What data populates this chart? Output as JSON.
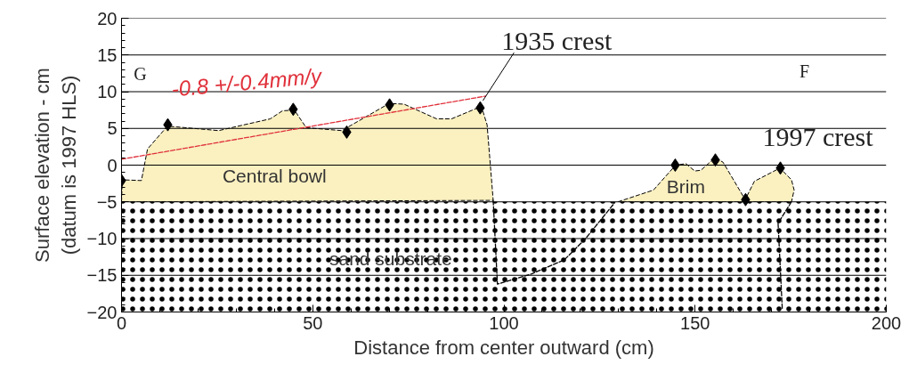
{
  "chart_data": {
    "type": "area",
    "xlabel": "Distance from center outward (cm)",
    "ylabel": "Surface elevation - cm\n(datum is 1997 HLS)",
    "xlim": [
      0,
      200
    ],
    "ylim": [
      -20,
      20
    ],
    "xticks": [
      0,
      50,
      100,
      150,
      200
    ],
    "yticks": [
      -20,
      -15,
      -10,
      -5,
      0,
      5,
      10,
      15,
      20
    ],
    "grid": "y",
    "series": [
      {
        "color": "#faf0c0",
        "line_style": "dashed",
        "x": [
          0,
          0.2,
          5.2,
          6.8,
          12.0,
          14.5,
          25.4,
          38.9,
          42.1,
          45.2,
          48.3,
          57.6,
          70.0,
          73.9,
          82.4,
          86.3,
          94.1,
          95.6,
          97.2
        ],
        "values": [
          -5.0,
          -2.0,
          -2.1,
          2.2,
          5.3,
          5.2,
          4.7,
          6.3,
          7.4,
          7.5,
          5.1,
          4.7,
          8.4,
          8.3,
          6.3,
          6.3,
          8.0,
          5.5,
          -4.8
        ]
      },
      {
        "color": "#faf0c0",
        "line_style": "dashed",
        "x": [
          129.8,
          139.1,
          144.9,
          147.6,
          149.9,
          151.5,
          155.2,
          157.3,
          163.1,
          165.5,
          172.2,
          175.2,
          175.9,
          175.2
        ],
        "values": [
          -5.0,
          -3.4,
          0,
          0.2,
          -0.8,
          -0.7,
          1.0,
          0.4,
          -4.7,
          -2.2,
          -0.4,
          -2.0,
          -3.4,
          -5.0
        ]
      },
      {
        "type": "line",
        "color": "#000000",
        "line_style": "dashed",
        "x": [
          97.2,
          98.3,
          107.3,
          115.8,
          121.2,
          129.0
        ],
        "values": [
          -4.8,
          -16.2,
          -14.8,
          -12.9,
          -10.1,
          -5.1
        ]
      },
      {
        "type": "line",
        "color": "#000000",
        "line_style": "dashed",
        "x": [
          175.2,
          171.7,
          172.8
        ],
        "values": [
          -5.0,
          -7.9,
          -19.6
        ]
      },
      {
        "type": "line",
        "color": "#e0303a",
        "line_style": "dashed",
        "x": [
          0,
          95.2
        ],
        "values": [
          0.8,
          9.4
        ]
      },
      {
        "type": "scatter",
        "color": "#000000",
        "marker": "diamond",
        "x": [
          0,
          12.1,
          44.9,
          58.9,
          70.1,
          93.8,
          144.8,
          155.3,
          163.2,
          172.3
        ],
        "values": [
          -2.1,
          5.5,
          7.6,
          4.5,
          8.2,
          7.8,
          0,
          0.7,
          -4.7,
          -0.4
        ]
      }
    ],
    "bands": [
      {
        "axis": "y",
        "from": -20,
        "to": -5,
        "color": "#ffffff"
      }
    ],
    "annotations": [
      "G",
      "F",
      {
        "text": "-0.8 +/-0.4mm/y",
        "x": 35,
        "y": 4.0
      },
      {
        "text": "1935 crest",
        "x": 93.8,
        "y": 7.8
      },
      {
        "text": "1997 crest",
        "x": 172.3,
        "y": -0.4
      },
      "Central bowl",
      "Brim",
      "sand substrate"
    ]
  }
}
